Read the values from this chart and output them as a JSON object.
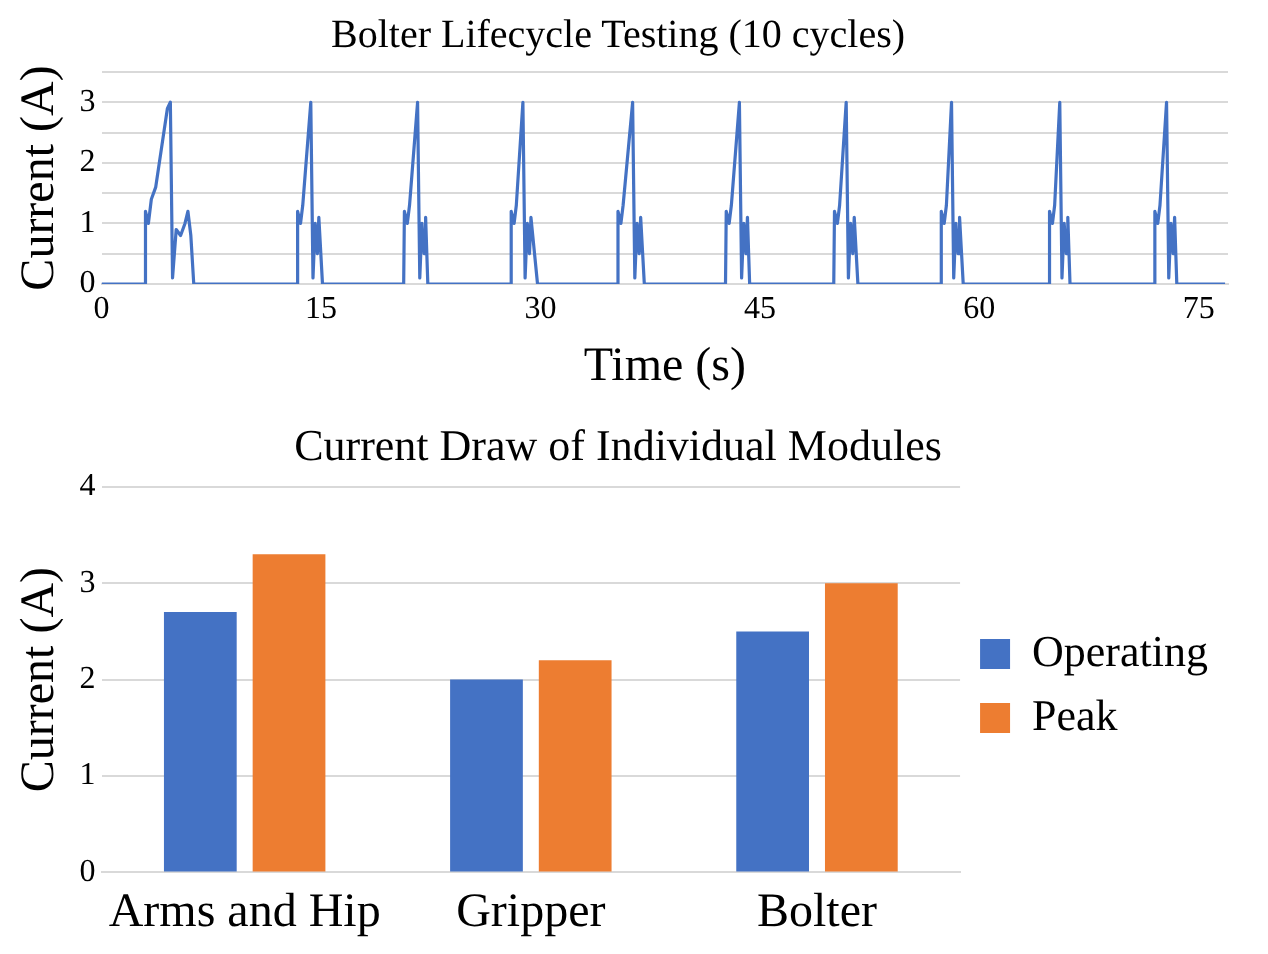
{
  "chart_data": [
    {
      "type": "line",
      "title": "Bolter Lifecycle Testing (10 cycles)",
      "xlabel": "Time (s)",
      "ylabel": "Current (A)",
      "xlim": [
        0,
        77
      ],
      "xticks": [
        0,
        15,
        30,
        45,
        60,
        75
      ],
      "ylim": [
        0,
        3.5
      ],
      "yticks": [
        0,
        {
          "value": 0.5,
          "label": null
        },
        1,
        {
          "value": 1.5,
          "label": null
        },
        2,
        {
          "value": 2.5,
          "label": null
        },
        3,
        {
          "value": 3.5,
          "label": null
        }
      ],
      "grid": "y",
      "legend": false,
      "x": [
        0,
        2.95,
        3.0,
        3.2,
        3.4,
        3.7,
        4.5,
        4.7,
        4.85,
        5.1,
        5.4,
        5.7,
        5.9,
        6.1,
        6.3,
        13.35,
        13.4,
        13.6,
        13.75,
        14.3,
        14.45,
        14.6,
        14.75,
        14.85,
        15.1,
        20.65,
        20.7,
        20.9,
        21.05,
        21.6,
        21.75,
        21.9,
        22.05,
        22.15,
        22.3,
        27.95,
        28.0,
        28.2,
        28.35,
        28.8,
        28.95,
        29.1,
        29.25,
        29.35,
        29.8,
        35.25,
        35.3,
        35.5,
        35.65,
        36.3,
        36.45,
        36.6,
        36.75,
        36.85,
        37.1,
        42.65,
        42.7,
        42.9,
        43.05,
        43.6,
        43.75,
        43.9,
        44.05,
        44.15,
        44.3,
        50.05,
        50.1,
        50.3,
        50.45,
        50.9,
        51.05,
        51.2,
        51.35,
        51.45,
        51.7,
        57.35,
        57.4,
        57.6,
        57.75,
        58.1,
        58.25,
        58.4,
        58.55,
        58.65,
        58.9,
        64.75,
        64.8,
        65.0,
        65.15,
        65.5,
        65.65,
        65.8,
        65.95,
        66.05,
        66.2,
        71.95,
        72.0,
        72.2,
        72.35,
        72.8,
        72.95,
        73.1,
        73.25,
        73.35,
        73.5,
        76.8
      ],
      "series": [
        {
          "color": "#4472c4",
          "values": [
            0,
            0,
            1.2,
            1.0,
            1.4,
            1.6,
            2.9,
            3.0,
            0.1,
            0.9,
            0.8,
            1.0,
            1.2,
            0.8,
            0,
            0,
            1.2,
            1.0,
            1.3,
            3.0,
            0.1,
            1.0,
            0.5,
            1.1,
            0,
            0,
            1.2,
            1.0,
            1.3,
            3.0,
            0.1,
            1.0,
            0.5,
            1.1,
            0,
            0,
            1.2,
            1.0,
            1.3,
            3.0,
            0.1,
            1.0,
            0.5,
            1.1,
            0,
            0,
            1.2,
            1.0,
            1.3,
            3.0,
            0.1,
            1.0,
            0.5,
            1.1,
            0,
            0,
            1.2,
            1.0,
            1.3,
            3.0,
            0.1,
            1.0,
            0.5,
            1.1,
            0,
            0,
            1.2,
            1.0,
            1.3,
            3.0,
            0.1,
            1.0,
            0.5,
            1.1,
            0,
            0,
            1.2,
            1.0,
            1.3,
            3.0,
            0.1,
            1.0,
            0.5,
            1.1,
            0,
            0,
            1.2,
            1.0,
            1.3,
            3.0,
            0.1,
            1.0,
            0.5,
            1.1,
            0,
            0,
            1.2,
            1.0,
            1.3,
            3.0,
            0.1,
            1.0,
            0.5,
            1.1,
            0,
            0
          ]
        }
      ]
    },
    {
      "type": "bar",
      "title": "Current Draw of Individual Modules",
      "ylabel": "Current (A)",
      "categories": [
        "Arms and Hip",
        "Gripper",
        "Bolter"
      ],
      "ylim": [
        0,
        4
      ],
      "yticks": [
        0,
        1,
        2,
        3,
        4
      ],
      "grid": "y",
      "legend": "right",
      "series": [
        {
          "name": "Operating",
          "color": "#4472c4",
          "values": [
            2.7,
            2.0,
            2.5
          ]
        },
        {
          "name": "Peak",
          "color": "#ed7d31",
          "values": [
            3.3,
            2.2,
            3.0
          ]
        }
      ]
    }
  ]
}
